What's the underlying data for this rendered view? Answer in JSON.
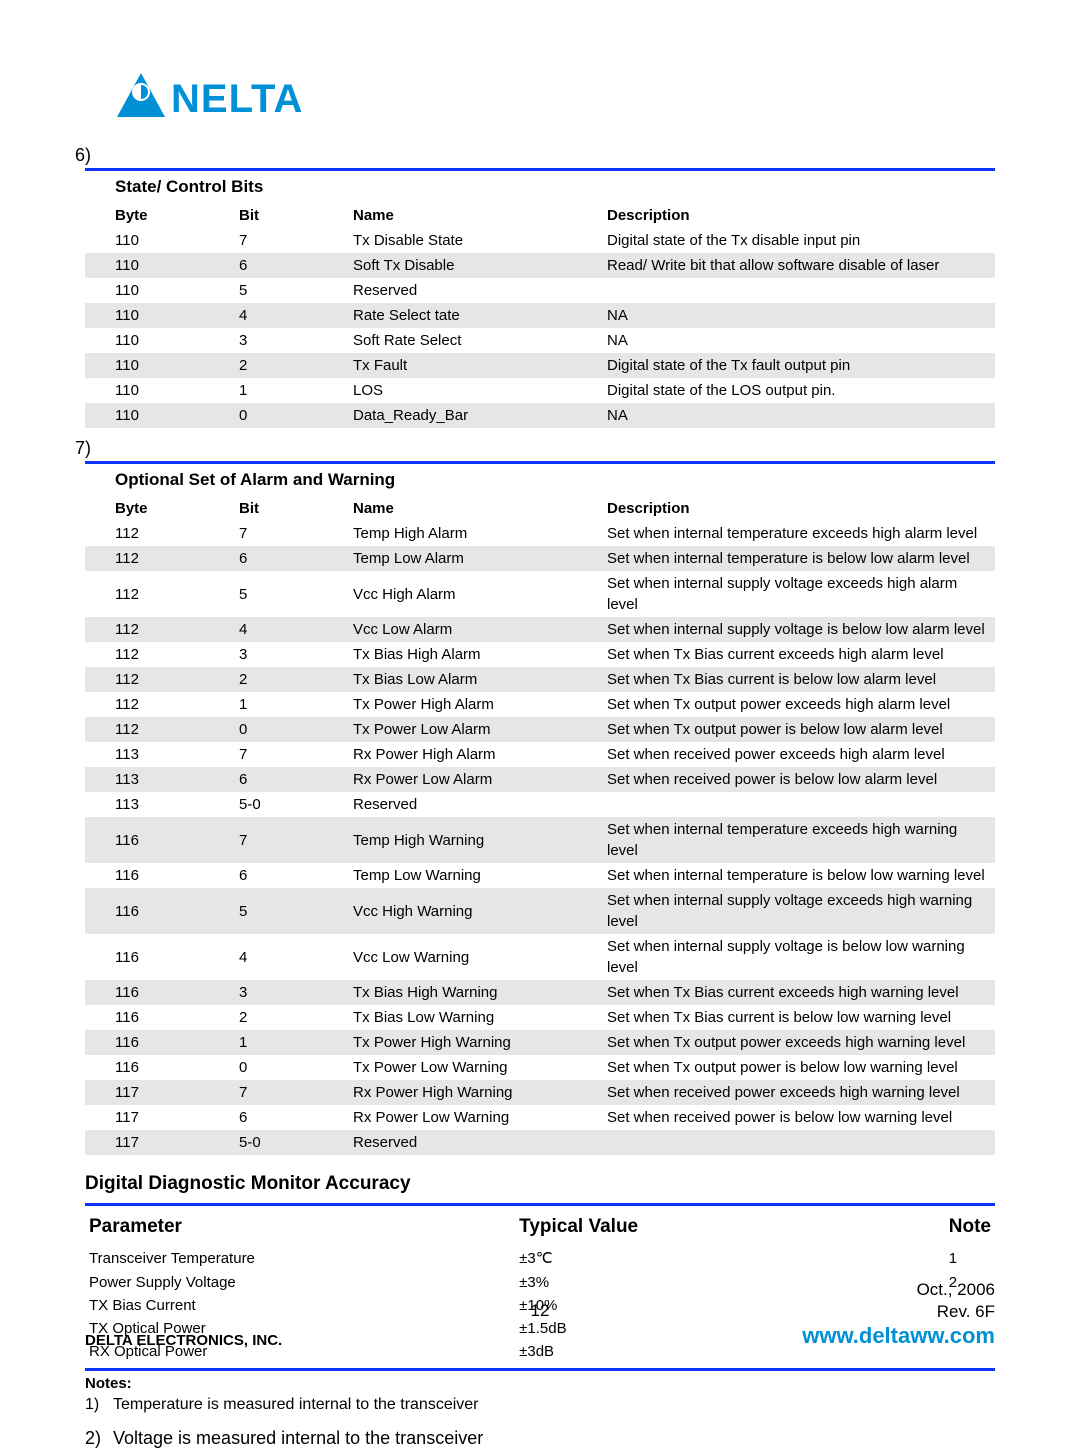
{
  "colors": {
    "brand_blue": "#0090d6",
    "rule_blue": "#0b34f4",
    "row_alt_bg": "#e6e6e6",
    "text": "#000000",
    "bg": "#ffffff"
  },
  "logo_text": "NELTA",
  "section6": {
    "num": "6)",
    "title": "State/ Control Bits",
    "headers": {
      "byte": "Byte",
      "bit": "Bit",
      "name": "Name",
      "desc": "Description"
    },
    "rows": [
      {
        "byte": "110",
        "bit": "7",
        "name": "Tx Disable State",
        "desc": "Digital state of the Tx disable input pin"
      },
      {
        "byte": "110",
        "bit": "6",
        "name": "Soft Tx Disable",
        "desc": "Read/ Write bit that allow software disable of laser"
      },
      {
        "byte": "110",
        "bit": "5",
        "name": "Reserved",
        "desc": ""
      },
      {
        "byte": "110",
        "bit": "4",
        "name": "Rate Select tate",
        "desc": "NA"
      },
      {
        "byte": "110",
        "bit": "3",
        "name": "Soft Rate Select",
        "desc": "NA"
      },
      {
        "byte": "110",
        "bit": "2",
        "name": "Tx Fault",
        "desc": "Digital state of the Tx fault output pin"
      },
      {
        "byte": "110",
        "bit": "1",
        "name": "LOS",
        "desc": "Digital state of the LOS output pin."
      },
      {
        "byte": "110",
        "bit": "0",
        "name": "Data_Ready_Bar",
        "desc": "NA"
      }
    ]
  },
  "section7": {
    "num": "7)",
    "title": "Optional Set of Alarm and Warning",
    "headers": {
      "byte": "Byte",
      "bit": "Bit",
      "name": "Name",
      "desc": "Description"
    },
    "rows": [
      {
        "byte": "112",
        "bit": "7",
        "name": "Temp High Alarm",
        "desc": "Set when internal temperature exceeds high alarm level"
      },
      {
        "byte": "112",
        "bit": "6",
        "name": "Temp Low Alarm",
        "desc": "Set when internal temperature is below low alarm level"
      },
      {
        "byte": "112",
        "bit": "5",
        "name": "Vcc High Alarm",
        "desc": "Set when internal supply voltage exceeds high alarm level"
      },
      {
        "byte": "112",
        "bit": "4",
        "name": "Vcc Low Alarm",
        "desc": "Set when internal supply voltage is below low alarm level"
      },
      {
        "byte": "112",
        "bit": "3",
        "name": "Tx Bias High Alarm",
        "desc": "Set when Tx Bias current exceeds high alarm level"
      },
      {
        "byte": "112",
        "bit": "2",
        "name": "Tx Bias Low Alarm",
        "desc": "Set when Tx Bias current is below low alarm level"
      },
      {
        "byte": "112",
        "bit": "1",
        "name": "Tx Power High Alarm",
        "desc": "Set when Tx output power exceeds high alarm level"
      },
      {
        "byte": "112",
        "bit": "0",
        "name": "Tx Power Low Alarm",
        "desc": "Set when Tx output power is below low alarm level"
      },
      {
        "byte": "113",
        "bit": "7",
        "name": "Rx Power High Alarm",
        "desc": "Set when received power exceeds high alarm level"
      },
      {
        "byte": "113",
        "bit": "6",
        "name": "Rx Power Low Alarm",
        "desc": "Set when received power is below low alarm level"
      },
      {
        "byte": "113",
        "bit": "5-0",
        "name": "Reserved",
        "desc": ""
      },
      {
        "byte": "116",
        "bit": "7",
        "name": "Temp High Warning",
        "desc": "Set when internal temperature exceeds high warning level"
      },
      {
        "byte": "116",
        "bit": "6",
        "name": "Temp Low Warning",
        "desc": "Set when internal temperature is below low warning level"
      },
      {
        "byte": "116",
        "bit": "5",
        "name": "Vcc High Warning",
        "desc": "Set when internal supply voltage exceeds high warning level"
      },
      {
        "byte": "116",
        "bit": "4",
        "name": "Vcc Low Warning",
        "desc": "Set when internal supply voltage is below low warning level"
      },
      {
        "byte": "116",
        "bit": "3",
        "name": "Tx Bias High Warning",
        "desc": "Set when Tx Bias current exceeds high warning level"
      },
      {
        "byte": "116",
        "bit": "2",
        "name": "Tx Bias Low Warning",
        "desc": "Set when Tx Bias current is below low warning level"
      },
      {
        "byte": "116",
        "bit": "1",
        "name": "Tx Power High Warning",
        "desc": "Set when Tx output power exceeds high warning level"
      },
      {
        "byte": "116",
        "bit": "0",
        "name": "Tx Power Low Warning",
        "desc": "Set when Tx output power is below low warning level"
      },
      {
        "byte": "117",
        "bit": "7",
        "name": "Rx Power High Warning",
        "desc": "Set when received power exceeds high warning level"
      },
      {
        "byte": "117",
        "bit": "6",
        "name": "Rx Power Low Warning",
        "desc": "Set when received power is below low warning level"
      },
      {
        "byte": "117",
        "bit": "5-0",
        "name": "Reserved",
        "desc": ""
      }
    ]
  },
  "accuracy": {
    "title": "Digital Diagnostic Monitor Accuracy",
    "headers": {
      "param": "Parameter",
      "typ": "Typical Value",
      "note": "Note"
    },
    "rows": [
      {
        "param": "Transceiver Temperature",
        "typ": "±3℃",
        "note": "1"
      },
      {
        "param": "Power Supply Voltage",
        "typ": "±3%",
        "note": "2"
      },
      {
        "param": "TX Bias Current",
        "typ": "±10%",
        "note": ""
      },
      {
        "param": "TX Optical Power",
        "typ": "±1.5dB",
        "note": ""
      },
      {
        "param": "RX Optical Power",
        "typ": "±3dB",
        "note": ""
      }
    ]
  },
  "notes": {
    "label": "Notes:",
    "n1_num": "1)",
    "n1": "Temperature is measured internal to the transceiver",
    "n2_num": "2)",
    "n2": "Voltage is measured internal to the transceiver"
  },
  "footer": {
    "page": "12",
    "date": "Oct.,  2006",
    "rev": "Rev. 6F",
    "company": "DELTA ELECTRONICS, INC.",
    "url": "www.deltaww.com"
  }
}
